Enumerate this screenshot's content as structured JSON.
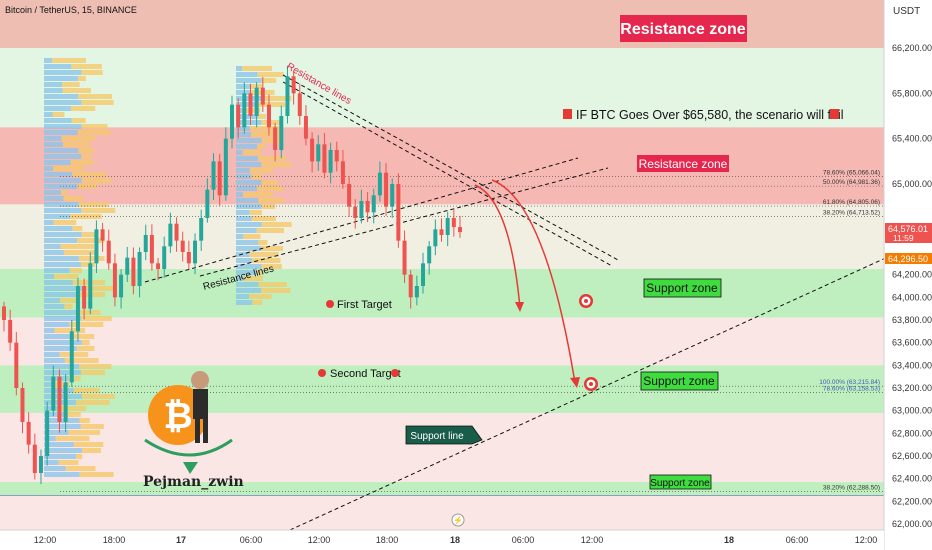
{
  "header": {
    "symbol": "Bitcoin / TetherUS, 15, BINANCE"
  },
  "price_axis": {
    "currency": "USDT",
    "ticks": [
      "66,200.00",
      "65,800.00",
      "65,400.00",
      "65,000.00",
      "64,600.00",
      "64,200.00",
      "64,000.00",
      "63,800.00",
      "63,600.00",
      "63,400.00",
      "63,200.00",
      "63,000.00",
      "62,800.00",
      "62,600.00",
      "62,400.00",
      "62,200.00",
      "62,000.00"
    ],
    "current_price": "64,576.01",
    "countdown": "11:59",
    "last_value": "64,296.50"
  },
  "time_axis": {
    "ticks": [
      "12:00",
      "18:00",
      "17",
      "06:00",
      "12:00",
      "18:00",
      "18",
      "06:00",
      "12:00",
      "18",
      "06:00",
      "12:00"
    ]
  },
  "annotations": {
    "resistance_zone_top": "Resistance zone",
    "resistance_zone_mid": "Resistance zone",
    "scenario_fail": "IF BTC Goes Over $65,580, the scenario will fail",
    "resistance_lines_top": "Resistance lines",
    "resistance_lines_bottom": "Resistance lines",
    "first_target": "First Target",
    "second_target": "Second Target",
    "support_zone_1": "Support zone",
    "support_zone_2": "Support zone",
    "support_zone_3": "Support zone",
    "support_line": "Support line",
    "author": "Pejman_zwin"
  },
  "fib_levels": [
    {
      "text": "78.60% (65,066.04)",
      "price": 65066.04
    },
    {
      "text": "50.00% (64,981.36)",
      "price": 64981.36
    },
    {
      "text": "61.80% (64,805.06)",
      "price": 64805.06
    },
    {
      "text": "38.20% (64,713.52)",
      "price": 64713.52
    },
    {
      "text": "100.00% (63,215.84)",
      "price": 63215.84
    },
    {
      "text": "78.60% (63,158.53)",
      "price": 63158.53
    },
    {
      "text": "38.20% (62,288.50)",
      "price": 62288.5
    }
  ],
  "colors": {
    "up": "#26a69a",
    "down": "#ef5350",
    "resistance": "#e86f8a",
    "support": "#6fdc6f",
    "label_red": "#e5274e",
    "label_green": "#3fdc3f"
  },
  "chart_data": {
    "type": "candlestick",
    "symbol": "BTCUSDT",
    "timeframe": "15",
    "ylim": [
      62000,
      66400
    ],
    "zones": [
      {
        "label": "Resistance zone",
        "from": 66200,
        "to": 66400
      },
      {
        "label": "Resistance zone",
        "from": 64820,
        "to": 65500
      },
      {
        "label": "Support zone",
        "from": 63820,
        "to": 64250
      },
      {
        "label": "Support zone",
        "from": 62980,
        "to": 63400
      },
      {
        "label": "Support zone",
        "from": 62250,
        "to": 62370
      }
    ],
    "targets": [
      {
        "label": "First Target",
        "price": 63870
      },
      {
        "label": "Second Target",
        "price": 63200
      }
    ],
    "invalidation_price": 65580,
    "closes": [
      63800,
      63600,
      63200,
      62900,
      62700,
      62450,
      62600,
      63000,
      63300,
      62900,
      63250,
      63700,
      64100,
      63900,
      64300,
      64600,
      64500,
      64300,
      64000,
      64200,
      64350,
      64100,
      64400,
      64550,
      64300,
      64250,
      64450,
      64650,
      64500,
      64400,
      64300,
      64500,
      64700,
      64950,
      65200,
      64900,
      65400,
      65700,
      65500,
      65800,
      65600,
      65850,
      65700,
      65500,
      65300,
      65600,
      65950,
      65800,
      65600,
      65400,
      65200,
      65350,
      65100,
      65300,
      65200,
      65000,
      64800,
      64700,
      64850,
      64750,
      64900,
      65100,
      64800,
      65000,
      64500,
      64200,
      64000,
      64100,
      64300,
      64450,
      64600,
      64550,
      64700,
      64620,
      64576
    ],
    "time_labels": [
      "12:00",
      "18:00",
      "17",
      "06:00",
      "12:00",
      "18:00",
      "18",
      "06:00",
      "12:00",
      "18",
      "06:00",
      "12:00"
    ]
  }
}
